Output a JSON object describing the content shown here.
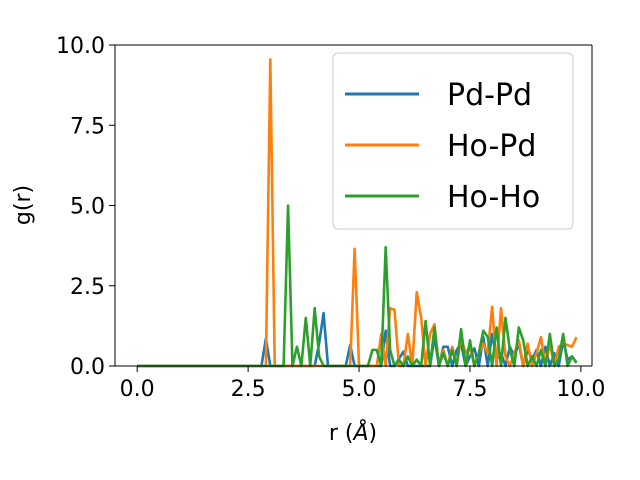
{
  "chart_data": {
    "type": "line",
    "xlabel": "r (",
    "xlabel_unit": "Å",
    "xlabel_close": ")",
    "ylabel": "g(r)",
    "xlim": [
      -0.5,
      10.25
    ],
    "ylim": [
      0,
      10
    ],
    "x_ticks": [
      0.0,
      2.5,
      5.0,
      7.5,
      10.0
    ],
    "x_tick_labels": [
      "0.0",
      "2.5",
      "5.0",
      "7.5",
      "10.0"
    ],
    "y_ticks": [
      0.0,
      2.5,
      5.0,
      7.5,
      10.0
    ],
    "y_tick_labels": [
      "0.0",
      "2.5",
      "5.0",
      "7.5",
      "10.0"
    ],
    "grid": false,
    "legend_position": "top-right",
    "series": [
      {
        "name": "Pd-Pd",
        "color": "#1f77b4",
        "x": [
          0.0,
          2.8,
          2.9,
          3.0,
          3.1,
          4.0,
          4.1,
          4.2,
          4.3,
          4.7,
          4.8,
          4.9,
          5.5,
          5.6,
          5.7,
          5.8,
          6.0,
          6.1,
          6.2,
          6.6,
          6.7,
          6.8,
          6.9,
          7.0,
          7.1,
          7.2,
          7.3,
          7.4,
          7.5,
          7.6,
          7.7,
          7.8,
          7.9,
          8.0,
          8.1,
          8.2,
          8.3,
          8.4,
          8.5,
          8.6,
          8.7,
          8.8,
          8.9,
          9.0,
          9.1,
          9.2,
          9.3,
          9.4,
          9.5,
          9.6,
          9.7,
          9.8,
          9.9
        ],
        "values": [
          0.0,
          0.0,
          0.85,
          0.0,
          0.0,
          0.0,
          0.7,
          1.65,
          0.0,
          0.0,
          0.65,
          0.0,
          0.0,
          1.1,
          0.0,
          0.0,
          0.45,
          0.0,
          0.0,
          0.0,
          0.9,
          0.0,
          0.6,
          0.6,
          0.0,
          0.5,
          0.7,
          0.0,
          0.3,
          0.55,
          0.0,
          0.9,
          0.0,
          1.0,
          0.2,
          0.4,
          0.0,
          0.6,
          0.3,
          0.7,
          0.0,
          0.5,
          0.2,
          0.5,
          0.0,
          0.6,
          0.0,
          0.4,
          0.0,
          0.8,
          0.2,
          0.3,
          0.1
        ]
      },
      {
        "name": "Ho-Pd",
        "color": "#ff7f0e",
        "x": [
          0.0,
          2.9,
          3.0,
          3.1,
          4.8,
          4.9,
          5.0,
          5.4,
          5.5,
          5.6,
          5.7,
          5.8,
          5.9,
          6.0,
          6.1,
          6.2,
          6.3,
          6.4,
          6.5,
          6.6,
          6.7,
          6.8,
          6.9,
          7.0,
          7.1,
          7.2,
          7.3,
          7.4,
          7.5,
          7.6,
          7.7,
          7.8,
          7.9,
          8.0,
          8.1,
          8.2,
          8.3,
          8.4,
          8.5,
          8.6,
          8.7,
          8.8,
          8.9,
          9.0,
          9.1,
          9.2,
          9.3,
          9.4,
          9.5,
          9.6,
          9.7,
          9.8,
          9.9
        ],
        "values": [
          0.0,
          0.0,
          9.55,
          0.0,
          0.0,
          3.65,
          0.0,
          0.0,
          1.0,
          0.0,
          1.8,
          1.75,
          0.0,
          0.0,
          1.0,
          0.0,
          2.3,
          1.5,
          0.0,
          1.0,
          1.3,
          0.0,
          0.5,
          0.0,
          0.6,
          0.0,
          0.9,
          0.4,
          0.6,
          0.0,
          0.4,
          0.7,
          0.4,
          1.85,
          0.0,
          1.8,
          0.3,
          0.0,
          0.4,
          0.8,
          0.0,
          0.7,
          0.0,
          0.4,
          0.9,
          0.0,
          0.7,
          0.0,
          0.6,
          0.7,
          0.65,
          0.6,
          0.9
        ]
      },
      {
        "name": "Ho-Ho",
        "color": "#2ca02c",
        "x": [
          0.0,
          3.3,
          3.4,
          3.5,
          3.6,
          3.7,
          3.8,
          3.9,
          4.0,
          4.1,
          4.2,
          5.2,
          5.3,
          5.4,
          5.5,
          5.6,
          5.7,
          5.8,
          5.9,
          6.0,
          6.1,
          6.2,
          6.3,
          6.4,
          6.5,
          6.6,
          6.7,
          6.8,
          6.9,
          7.0,
          7.1,
          7.2,
          7.3,
          7.4,
          7.5,
          7.6,
          7.7,
          7.8,
          7.9,
          8.0,
          8.1,
          8.2,
          8.3,
          8.4,
          8.5,
          8.6,
          8.7,
          8.8,
          8.9,
          9.0,
          9.1,
          9.2,
          9.3,
          9.4,
          9.5,
          9.6,
          9.7,
          9.8,
          9.9
        ],
        "values": [
          0.0,
          0.0,
          5.0,
          0.0,
          0.6,
          0.0,
          1.5,
          0.0,
          1.8,
          0.3,
          0.0,
          0.0,
          0.5,
          0.5,
          0.0,
          3.7,
          0.5,
          0.0,
          0.2,
          0.0,
          0.3,
          0.0,
          0.2,
          0.0,
          1.4,
          0.0,
          1.2,
          0.0,
          0.4,
          0.0,
          0.5,
          0.0,
          1.15,
          0.0,
          0.8,
          0.0,
          0.4,
          1.1,
          0.9,
          0.0,
          1.2,
          0.0,
          1.5,
          0.5,
          0.0,
          1.2,
          0.8,
          0.0,
          0.3,
          0.0,
          0.5,
          0.0,
          1.0,
          0.0,
          0.2,
          1.0,
          0.0,
          0.3,
          0.1
        ]
      }
    ]
  }
}
